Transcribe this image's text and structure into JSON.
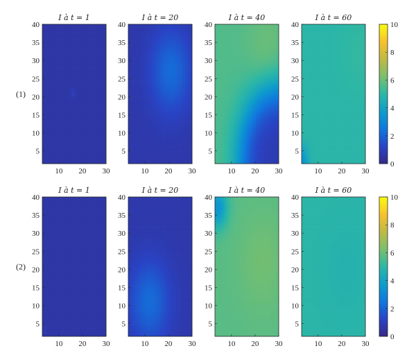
{
  "chart_data": {
    "type": "heatmap",
    "colormap": "parula",
    "x_range": [
      3,
      30
    ],
    "y_range": [
      1.5,
      40
    ],
    "x_ticks": [
      10,
      20,
      30
    ],
    "y_ticks": [
      5,
      10,
      15,
      20,
      25,
      30,
      35,
      40
    ],
    "colorbar_range": [
      0,
      10
    ],
    "colorbar_ticks": [
      0,
      2,
      4,
      6,
      8,
      10
    ],
    "rows": [
      {
        "label": "(1)",
        "panels": [
          {
            "title": "I à t = 1",
            "field": {
              "base": 0.6,
              "bumps": [
                {
                  "x": 16,
                  "y": 21,
                  "amp": 0.5,
                  "sx": 0.7,
                  "sy": 0.9
                }
              ]
            }
          },
          {
            "title": "I à t = 20",
            "field": {
              "base": 0.7,
              "bumps": [
                {
                  "x": 21,
                  "y": 27,
                  "amp": 1.5,
                  "sx": 6,
                  "sy": 8
                }
              ]
            }
          },
          {
            "title": "I à t = 40",
            "field": {
              "mode": "wave",
              "center_x": 30,
              "center_y": 2,
              "radius": 16,
              "width": 6,
              "far": 5.6,
              "near": 0.8,
              "bumps": [
                {
                  "x": 25,
                  "y": 32,
                  "amp": 0.5,
                  "sx": 6,
                  "sy": 8
                }
              ]
            }
          },
          {
            "title": "I à t = 60",
            "field": {
              "base": 4.9,
              "bumps": [
                {
                  "x": 3,
                  "y": 2,
                  "amp": -1.5,
                  "sx": 2,
                  "sy": 3
                },
                {
                  "x": 28,
                  "y": 32,
                  "amp": 0.2,
                  "sx": 6,
                  "sy": 8
                }
              ]
            }
          }
        ]
      },
      {
        "label": "(2)",
        "panels": [
          {
            "title": "I à t = 1",
            "field": {
              "base": 0.6,
              "bumps": [
                {
                  "x": 4,
                  "y": 3,
                  "amp": 0.3,
                  "sx": 0.5,
                  "sy": 0.8
                }
              ]
            }
          },
          {
            "title": "I à t = 20",
            "field": {
              "base": 0.7,
              "bumps": [
                {
                  "x": 12,
                  "y": 11,
                  "amp": 1.5,
                  "sx": 6,
                  "sy": 8
                }
              ]
            }
          },
          {
            "title": "I à t = 40",
            "field": {
              "base": 5.7,
              "bumps": [
                {
                  "x": 4,
                  "y": 37,
                  "amp": -2.3,
                  "sx": 3,
                  "sy": 4
                },
                {
                  "x": 23,
                  "y": 22,
                  "amp": 0.4,
                  "sx": 7,
                  "sy": 10
                }
              ]
            }
          },
          {
            "title": "I à t = 60",
            "field": {
              "base": 4.9,
              "bumps": [
                {
                  "x": 22,
                  "y": 20,
                  "amp": -0.2,
                  "sx": 7,
                  "sy": 10
                }
              ]
            }
          }
        ]
      }
    ]
  }
}
